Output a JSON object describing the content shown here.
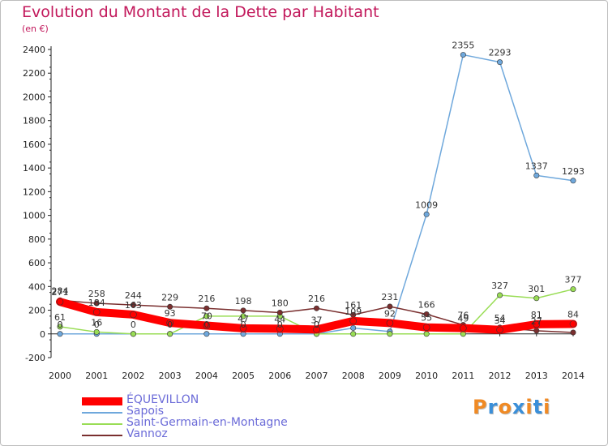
{
  "title": "Evolution du Montant de la Dette par Habitant",
  "subtitle": "(en €)",
  "logo": "Proxiti",
  "chart_data": {
    "type": "line",
    "title": "Evolution du Montant de la Dette par Habitant",
    "subtitle": "(en €)",
    "x": [
      "2000",
      "2001",
      "2002",
      "2003",
      "2004",
      "2005",
      "2006",
      "2007",
      "2008",
      "2009",
      "2010",
      "2011",
      "2012",
      "2013",
      "2014"
    ],
    "ylim": [
      -200,
      2400
    ],
    "yticks": [
      -200,
      0,
      200,
      400,
      600,
      800,
      1000,
      1200,
      1400,
      1600,
      1800,
      2000,
      2200,
      2400
    ],
    "grid": false,
    "legend": "bottom-left",
    "series": [
      {
        "name": "ÉQUEVILLON",
        "color": "#ff0000",
        "values": [
          271,
          184,
          163,
          93,
          70,
          47,
          44,
          37,
          109,
          92,
          55,
          49,
          34,
          81,
          84
        ],
        "labels": [
          "271",
          "184",
          "163",
          "93",
          "70",
          "47",
          "44",
          "37",
          "109",
          "92",
          "55",
          "49",
          "34",
          "81",
          "84"
        ]
      },
      {
        "name": "Sapois",
        "color": "#6fa8dc",
        "values": [
          0,
          0,
          0,
          0,
          0,
          0,
          0,
          0,
          50,
          20,
          1009,
          2355,
          2293,
          1337,
          1293
        ],
        "labels": [
          "0",
          "0",
          "0",
          "0",
          "0",
          "0",
          "0",
          "0",
          "",
          "",
          "1009",
          "2355",
          "2293",
          "1337",
          "1293"
        ]
      },
      {
        "name": "Saint-Germain-en-Montagne",
        "color": "#99dd55",
        "values": [
          61,
          16,
          0,
          0,
          150,
          150,
          150,
          0,
          0,
          0,
          0,
          0,
          327,
          301,
          377
        ],
        "labels": [
          "61",
          "16",
          "",
          "",
          "",
          "",
          "",
          "",
          "",
          "",
          "",
          "",
          "327",
          "301",
          "377"
        ]
      },
      {
        "name": "Vannoz",
        "color": "#7a2f2f",
        "values": [
          284,
          258,
          244,
          229,
          216,
          198,
          180,
          216,
          161,
          231,
          166,
          76,
          54,
          27,
          12
        ],
        "labels": [
          "284",
          "258",
          "244",
          "229",
          "216",
          "198",
          "180",
          "216",
          "161",
          "231",
          "166",
          "76",
          "54",
          "27",
          ""
        ]
      }
    ]
  }
}
